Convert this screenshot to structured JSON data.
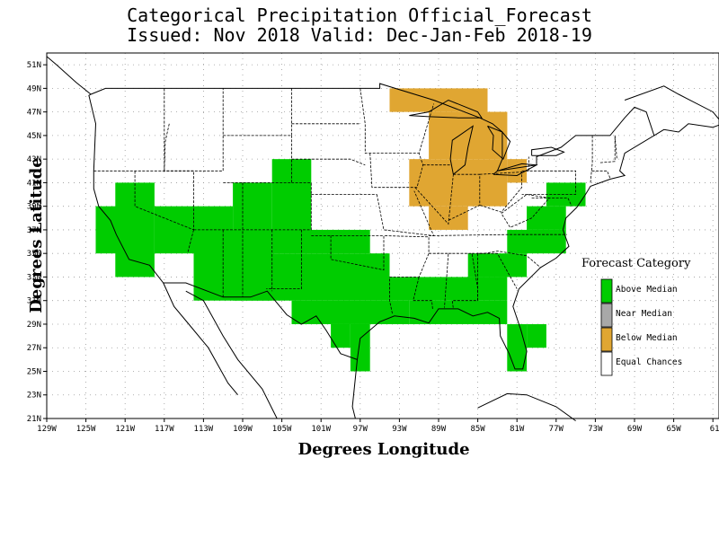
{
  "title": {
    "line1": "Categorical Precipitation Official_Forecast",
    "line2": "Issued: Nov 2018 Valid: Dec-Jan-Feb 2018-19"
  },
  "axes": {
    "x_title": "Degrees Longitude",
    "y_title": "Degrees Latitude",
    "x_ticks": [
      "129W",
      "125W",
      "121W",
      "117W",
      "113W",
      "109W",
      "105W",
      "101W",
      "97W",
      "93W",
      "89W",
      "85W",
      "81W",
      "77W",
      "73W",
      "69W",
      "65W",
      "61"
    ],
    "y_ticks": [
      "51N",
      "49N",
      "47N",
      "45N",
      "43N",
      "41N",
      "39N",
      "37N",
      "35N",
      "33N",
      "31N",
      "29N",
      "27N",
      "25N",
      "23N",
      "21N"
    ]
  },
  "legend": {
    "title": "Forecast Category",
    "items": [
      {
        "label": "Above Median",
        "color": "#00cc00"
      },
      {
        "label": "Near Median",
        "color": "#a8a8a8"
      },
      {
        "label": "Below Median",
        "color": "#e0a632"
      },
      {
        "label": "Equal Chances",
        "color": "#ffffff"
      }
    ]
  },
  "regions": {
    "above_median": [
      [
        -124,
        35,
        -120,
        39
      ],
      [
        -122,
        33,
        -118,
        41
      ],
      [
        -118,
        35,
        -110,
        39
      ],
      [
        -114,
        31,
        -106,
        37
      ],
      [
        -106,
        37,
        -102,
        43
      ],
      [
        -110,
        37,
        -106,
        41
      ],
      [
        -106,
        35,
        -96,
        37
      ],
      [
        -110,
        31,
        -94,
        35
      ],
      [
        -104,
        29,
        -92,
        31
      ],
      [
        -100,
        27,
        -98,
        29
      ],
      [
        -98,
        25,
        -96,
        29
      ],
      [
        -94,
        31,
        -82,
        33
      ],
      [
        -92,
        29,
        -82,
        31
      ],
      [
        -86,
        33,
        -80,
        35
      ],
      [
        -82,
        35,
        -76,
        37
      ],
      [
        -80,
        37,
        -76,
        39
      ],
      [
        -78,
        39,
        -74,
        41
      ],
      [
        -80,
        25,
        -80,
        25
      ],
      [
        -82,
        25,
        -80,
        29
      ],
      [
        -80,
        27,
        -78,
        29
      ]
    ],
    "below_median": [
      [
        -94,
        47,
        -84,
        49
      ],
      [
        -90,
        43,
        -82,
        47
      ],
      [
        -92,
        39,
        -82,
        43
      ],
      [
        -90,
        37,
        -86,
        39
      ],
      [
        -82,
        41,
        -80,
        43
      ],
      [
        -86,
        45,
        -82,
        47
      ]
    ],
    "near_median": []
  }
}
